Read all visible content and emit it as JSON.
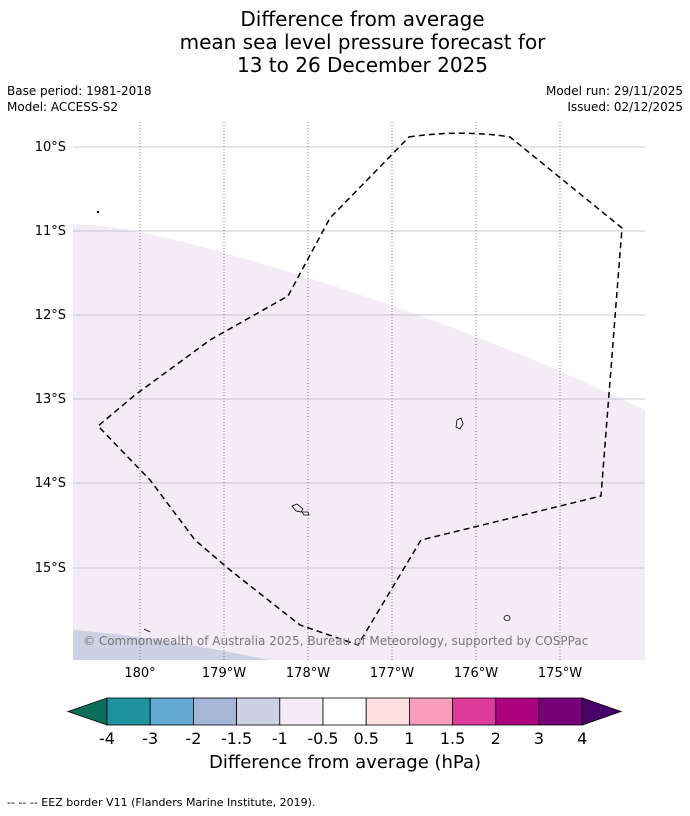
{
  "title": {
    "line1": "Difference from average",
    "line2": "mean sea level pressure forecast for",
    "line3": "13 to 26 December 2025"
  },
  "meta": {
    "base_period": "Base period: 1981-2018",
    "model": "Model: ACCESS-S2",
    "model_run": "Model run: 29/11/2025",
    "issued": "Issued: 02/12/2025"
  },
  "map": {
    "lat_labels": [
      "10°S",
      "11°S",
      "12°S",
      "13°S",
      "14°S",
      "15°S"
    ],
    "lon_labels": [
      "180°",
      "179°W",
      "178°W",
      "177°W",
      "176°W",
      "175°W"
    ],
    "copyright": "© Commonwealth of Australia 2025, Bureau of Meteorology, supported by COSPPac",
    "colors": {
      "light_anomaly": "#f3ecf5",
      "moderate_anomaly": "#ced0e4",
      "gridline": "#b8b8c8",
      "eez_border": "#000000"
    }
  },
  "colorbar": {
    "title": "Difference from average (hPa)",
    "tick_labels": [
      "-4",
      "-3",
      "-2",
      "-1.5",
      "-1",
      "-0.5",
      "0.5",
      "1",
      "1.5",
      "2",
      "3",
      "4"
    ],
    "colors": {
      "under": "#0b6e5d",
      "bins": [
        "#1f939d",
        "#64a9d2",
        "#a6b6d9",
        "#ced0e4",
        "#f3ecf5",
        "#ffffff",
        "#fde0df",
        "#f89ebc",
        "#de3a9b",
        "#ad0180",
        "#77007a"
      ],
      "over": "#4a006a"
    }
  },
  "footnote": "--  --  -- EEZ border V11 (Flanders Marine Institute, 2019)."
}
